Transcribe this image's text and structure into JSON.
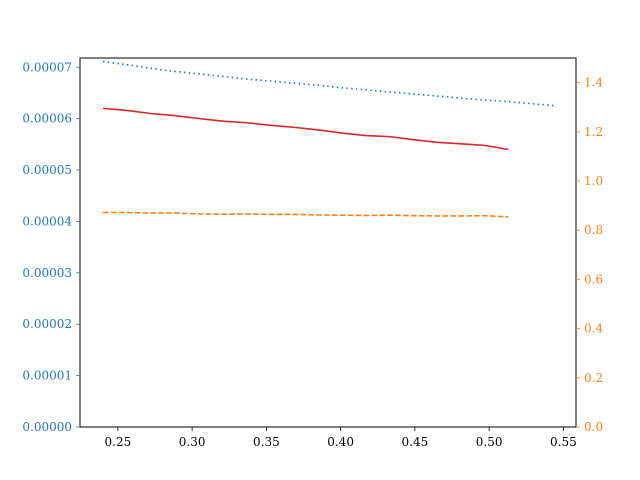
{
  "chart_data": {
    "type": "line",
    "title": "",
    "xlabel": "",
    "ylabel": "",
    "y2label": "",
    "xlim": [
      0.2245,
      0.5585
    ],
    "ylim": [
      0,
      7.18e-05
    ],
    "y2lim": [
      0,
      1.5
    ],
    "x_ticks": [
      0.25,
      0.3,
      0.35,
      0.4,
      0.45,
      0.5,
      0.55
    ],
    "x_tick_labels": [
      "0.25",
      "0.30",
      "0.35",
      "0.40",
      "0.45",
      "0.50",
      "0.55"
    ],
    "y_ticks": [
      0,
      1e-05,
      2e-05,
      3e-05,
      4e-05,
      5e-05,
      6e-05,
      7e-05
    ],
    "y_tick_labels": [
      "0.00000",
      "0.00001",
      "0.00002",
      "0.00003",
      "0.00004",
      "0.00005",
      "0.00006",
      "0.00007"
    ],
    "y2_ticks": [
      0,
      0.2,
      0.4,
      0.6,
      0.8,
      1.0,
      1.2,
      1.4
    ],
    "y2_tick_labels": [
      "0.0",
      "0.2",
      "0.4",
      "0.6",
      "0.8",
      "1.0",
      "1.2",
      "1.4"
    ],
    "left_axis_color": "#1f77b4",
    "right_axis_color": "#ff7f0e",
    "grid": false,
    "series": [
      {
        "axis": "left",
        "style": "dotted",
        "color": "#1f77b4",
        "x": [
          0.24,
          0.256,
          0.272,
          0.288,
          0.305,
          0.321,
          0.337,
          0.353,
          0.369,
          0.385,
          0.401,
          0.417,
          0.433,
          0.449,
          0.465,
          0.481,
          0.497,
          0.513,
          0.529,
          0.545
        ],
        "values": [
          7.11e-05,
          7.05e-05,
          6.98e-05,
          6.92e-05,
          6.87e-05,
          6.82e-05,
          6.77e-05,
          6.73e-05,
          6.69e-05,
          6.65e-05,
          6.6e-05,
          6.56e-05,
          6.52e-05,
          6.48e-05,
          6.44e-05,
          6.4e-05,
          6.36e-05,
          6.33e-05,
          6.29e-05,
          6.25e-05
        ]
      },
      {
        "axis": "left",
        "style": "solid",
        "color": "#d62728",
        "x": [
          0.24,
          0.256,
          0.272,
          0.288,
          0.305,
          0.321,
          0.337,
          0.353,
          0.369,
          0.385,
          0.401,
          0.417,
          0.433,
          0.449,
          0.465,
          0.481,
          0.497,
          0.513
        ],
        "values": [
          6.2e-05,
          6.16e-05,
          6.1e-05,
          6.06e-05,
          6e-05,
          5.95e-05,
          5.92e-05,
          5.87e-05,
          5.83e-05,
          5.78e-05,
          5.72e-05,
          5.67e-05,
          5.65e-05,
          5.59e-05,
          5.54e-05,
          5.51e-05,
          5.48e-05,
          5.4e-05
        ]
      },
      {
        "axis": "right",
        "style": "dashed",
        "color": "#ff7f0e",
        "x": [
          0.24,
          0.256,
          0.272,
          0.288,
          0.305,
          0.321,
          0.337,
          0.353,
          0.369,
          0.385,
          0.401,
          0.417,
          0.433,
          0.449,
          0.465,
          0.481,
          0.497,
          0.513
        ],
        "values": [
          0.872,
          0.872,
          0.87,
          0.87,
          0.866,
          0.865,
          0.866,
          0.864,
          0.864,
          0.862,
          0.861,
          0.86,
          0.861,
          0.859,
          0.858,
          0.858,
          0.859,
          0.854
        ]
      }
    ]
  }
}
